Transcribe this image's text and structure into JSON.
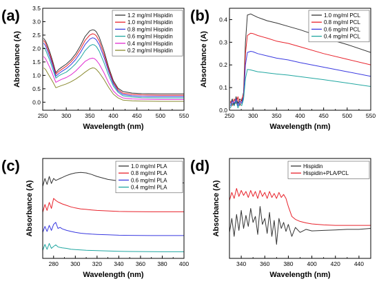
{
  "chart_data": [
    {
      "panel": "(a)",
      "type": "line",
      "xlabel": "Wavelength (nm)",
      "ylabel": "Absorbance (A)",
      "xlim": [
        250,
        550
      ],
      "ylim": [
        -0.3,
        3.5
      ],
      "xticks": [
        250,
        300,
        350,
        400,
        450,
        500,
        550
      ],
      "yticks": [
        0.0,
        0.5,
        1.0,
        1.5,
        2.0,
        2.5,
        3.0,
        3.5
      ],
      "ytick_decimals": 1,
      "grid": false,
      "legend_position": "top-right",
      "series": [
        {
          "name": "1.2 mg/ml Hispidin",
          "color": "#333333",
          "x": [
            252,
            256,
            260,
            266,
            272,
            278,
            284,
            290,
            300,
            310,
            320,
            330,
            340,
            350,
            356,
            360,
            364,
            370,
            380,
            390,
            400,
            410,
            420,
            440,
            460,
            500,
            550
          ],
          "y": [
            2.38,
            2.28,
            2.12,
            1.82,
            1.48,
            1.1,
            1.22,
            1.3,
            1.42,
            1.58,
            1.8,
            2.1,
            2.45,
            2.66,
            2.7,
            2.68,
            2.62,
            2.42,
            1.92,
            1.3,
            0.8,
            0.52,
            0.4,
            0.34,
            0.32,
            0.31,
            0.31
          ]
        },
        {
          "name": "1.0 mg/ml Hispidin",
          "color": "#e8212a",
          "x": [
            252,
            256,
            260,
            266,
            272,
            278,
            284,
            290,
            300,
            310,
            320,
            330,
            340,
            350,
            356,
            360,
            364,
            370,
            380,
            390,
            400,
            410,
            420,
            440,
            460,
            500,
            550
          ],
          "y": [
            2.3,
            2.2,
            2.02,
            1.74,
            1.4,
            1.04,
            1.14,
            1.22,
            1.34,
            1.5,
            1.7,
            1.98,
            2.3,
            2.5,
            2.55,
            2.53,
            2.47,
            2.28,
            1.8,
            1.22,
            0.74,
            0.47,
            0.34,
            0.29,
            0.27,
            0.26,
            0.26
          ]
        },
        {
          "name": "0.8 mg/ml Hispidin",
          "color": "#3838e0",
          "x": [
            252,
            256,
            260,
            266,
            272,
            278,
            284,
            290,
            300,
            310,
            320,
            330,
            340,
            350,
            356,
            360,
            364,
            370,
            380,
            390,
            400,
            410,
            420,
            440,
            460,
            500,
            550
          ],
          "y": [
            2.2,
            2.1,
            1.92,
            1.65,
            1.32,
            0.97,
            1.06,
            1.14,
            1.25,
            1.4,
            1.59,
            1.85,
            2.15,
            2.35,
            2.4,
            2.38,
            2.32,
            2.14,
            1.68,
            1.14,
            0.68,
            0.42,
            0.29,
            0.24,
            0.22,
            0.21,
            0.21
          ]
        },
        {
          "name": "0.6 mg/ml Hispidin",
          "color": "#1fa6a0",
          "x": [
            252,
            256,
            260,
            266,
            272,
            278,
            284,
            290,
            300,
            310,
            320,
            330,
            340,
            350,
            356,
            360,
            364,
            370,
            380,
            390,
            400,
            410,
            420,
            440,
            460,
            500,
            550
          ],
          "y": [
            2.05,
            1.95,
            1.78,
            1.52,
            1.2,
            0.9,
            0.98,
            1.04,
            1.12,
            1.26,
            1.43,
            1.65,
            1.92,
            2.1,
            2.15,
            2.13,
            2.07,
            1.9,
            1.48,
            1.0,
            0.6,
            0.37,
            0.24,
            0.19,
            0.17,
            0.16,
            0.16
          ]
        },
        {
          "name": "0.4 mg/ml Hispidin",
          "color": "#e02ad0",
          "x": [
            252,
            256,
            260,
            266,
            272,
            278,
            284,
            290,
            300,
            310,
            320,
            330,
            340,
            350,
            356,
            360,
            364,
            370,
            380,
            390,
            400,
            410,
            420,
            440,
            460,
            500,
            550
          ],
          "y": [
            1.7,
            1.62,
            1.48,
            1.26,
            1.0,
            0.74,
            0.8,
            0.85,
            0.92,
            1.02,
            1.16,
            1.34,
            1.52,
            1.62,
            1.64,
            1.62,
            1.56,
            1.42,
            1.1,
            0.72,
            0.42,
            0.25,
            0.16,
            0.12,
            0.11,
            0.1,
            0.1
          ]
        },
        {
          "name": "0.2 mg/ml Hispidin",
          "color": "#8a8a30",
          "x": [
            252,
            256,
            260,
            266,
            272,
            278,
            284,
            290,
            300,
            310,
            320,
            330,
            340,
            350,
            356,
            360,
            364,
            370,
            380,
            390,
            400,
            410,
            420,
            440,
            460,
            500,
            550
          ],
          "y": [
            1.28,
            1.22,
            1.1,
            0.92,
            0.74,
            0.54,
            0.58,
            0.62,
            0.68,
            0.76,
            0.86,
            0.98,
            1.12,
            1.24,
            1.28,
            1.27,
            1.22,
            1.1,
            0.85,
            0.55,
            0.3,
            0.16,
            0.08,
            0.05,
            0.04,
            0.03,
            0.03
          ]
        }
      ]
    },
    {
      "panel": "(b)",
      "type": "line",
      "xlabel": "Wavelength (nm)",
      "ylabel": "Absorbance (A)",
      "xlim": [
        250,
        550
      ],
      "ylim": [
        0.0,
        0.45
      ],
      "xticks": [
        250,
        300,
        350,
        400,
        450,
        500,
        550
      ],
      "yticks": [
        0.0,
        0.1,
        0.2,
        0.3,
        0.4
      ],
      "ytick_decimals": 1,
      "grid": false,
      "legend_position": "top-right",
      "series": [
        {
          "name": "1.0 mg/ml PCL",
          "color": "#333333",
          "x": [
            252,
            256,
            260,
            264,
            268,
            272,
            276,
            280,
            284,
            288,
            295,
            300,
            310,
            330,
            350,
            375,
            400,
            450,
            500,
            550
          ],
          "y": [
            0.03,
            0.05,
            0.02,
            0.06,
            0.03,
            0.05,
            0.04,
            0.08,
            0.3,
            0.42,
            0.425,
            0.42,
            0.41,
            0.395,
            0.385,
            0.37,
            0.355,
            0.32,
            0.29,
            0.255
          ]
        },
        {
          "name": "0.8 mg/ml PCL",
          "color": "#e8212a",
          "x": [
            252,
            256,
            260,
            264,
            268,
            272,
            276,
            280,
            284,
            288,
            295,
            300,
            310,
            330,
            350,
            375,
            400,
            450,
            500,
            550
          ],
          "y": [
            0.04,
            0.02,
            0.05,
            0.03,
            0.06,
            0.02,
            0.05,
            0.07,
            0.25,
            0.33,
            0.34,
            0.338,
            0.33,
            0.318,
            0.305,
            0.295,
            0.28,
            0.25,
            0.225,
            0.2
          ]
        },
        {
          "name": "0.6 mg/ml PCL",
          "color": "#3838e0",
          "x": [
            252,
            256,
            260,
            264,
            268,
            272,
            276,
            280,
            284,
            288,
            295,
            300,
            310,
            330,
            350,
            375,
            400,
            450,
            500,
            550
          ],
          "y": [
            0.02,
            0.04,
            0.03,
            0.05,
            0.02,
            0.04,
            0.03,
            0.06,
            0.2,
            0.255,
            0.26,
            0.258,
            0.25,
            0.24,
            0.23,
            0.222,
            0.21,
            0.19,
            0.17,
            0.15
          ]
        },
        {
          "name": "0.4 mg/ml PCL",
          "color": "#1fa6a0",
          "x": [
            252,
            256,
            260,
            264,
            268,
            272,
            276,
            280,
            284,
            288,
            295,
            300,
            310,
            330,
            350,
            375,
            400,
            450,
            500,
            550
          ],
          "y": [
            0.01,
            0.03,
            0.02,
            0.04,
            0.01,
            0.03,
            0.02,
            0.05,
            0.14,
            0.18,
            0.178,
            0.175,
            0.17,
            0.165,
            0.16,
            0.155,
            0.148,
            0.135,
            0.12,
            0.105
          ]
        }
      ]
    },
    {
      "panel": "(c)",
      "type": "line",
      "xlabel": "Wavelength (nm)",
      "ylabel": "Absorbance (A)",
      "xlim": [
        270,
        400
      ],
      "ylim": [
        0,
        1
      ],
      "xticks": [
        280,
        300,
        320,
        340,
        360,
        380,
        400
      ],
      "yticks": [],
      "grid": false,
      "legend_position": "top-right",
      "series": [
        {
          "name": "1.0 mg/ml PLA",
          "color": "#333333",
          "x": [
            270,
            272,
            274,
            276,
            278,
            280,
            282,
            284,
            286,
            288,
            292,
            296,
            300,
            305,
            310,
            315,
            320,
            330,
            340,
            350,
            360,
            370,
            380,
            390,
            400
          ],
          "y": [
            0.72,
            0.8,
            0.74,
            0.82,
            0.75,
            0.8,
            0.78,
            0.79,
            0.8,
            0.81,
            0.83,
            0.845,
            0.855,
            0.86,
            0.855,
            0.84,
            0.82,
            0.79,
            0.775,
            0.765,
            0.76,
            0.76,
            0.758,
            0.756,
            0.755
          ]
        },
        {
          "name": "0.8 mg/ml PLA",
          "color": "#e8212a",
          "x": [
            270,
            272,
            274,
            276,
            278,
            280,
            282,
            284,
            286,
            288,
            292,
            296,
            300,
            305,
            310,
            315,
            320,
            330,
            340,
            350,
            360,
            370,
            380,
            390,
            400
          ],
          "y": [
            0.46,
            0.54,
            0.48,
            0.56,
            0.5,
            0.6,
            0.58,
            0.565,
            0.555,
            0.545,
            0.53,
            0.515,
            0.505,
            0.495,
            0.49,
            0.485,
            0.48,
            0.475,
            0.47,
            0.468,
            0.467,
            0.466,
            0.466,
            0.466,
            0.466
          ]
        },
        {
          "name": "0.6 mg/ml PLA",
          "color": "#3838e0",
          "x": [
            270,
            272,
            274,
            276,
            278,
            280,
            282,
            284,
            286,
            288,
            292,
            296,
            300,
            305,
            310,
            315,
            320,
            330,
            340,
            350,
            360,
            370,
            380,
            390,
            400
          ],
          "y": [
            0.26,
            0.32,
            0.27,
            0.33,
            0.28,
            0.34,
            0.36,
            0.3,
            0.31,
            0.295,
            0.28,
            0.27,
            0.26,
            0.252,
            0.247,
            0.243,
            0.24,
            0.236,
            0.232,
            0.23,
            0.229,
            0.228,
            0.228,
            0.228,
            0.228
          ]
        },
        {
          "name": "0.4 mg/ml PLA",
          "color": "#1fa6a0",
          "x": [
            270,
            272,
            274,
            276,
            278,
            280,
            282,
            284,
            286,
            288,
            292,
            296,
            300,
            305,
            310,
            315,
            320,
            330,
            340,
            350,
            360,
            370,
            380,
            390,
            400
          ],
          "y": [
            0.08,
            0.14,
            0.09,
            0.15,
            0.1,
            0.12,
            0.135,
            0.115,
            0.11,
            0.105,
            0.1,
            0.092,
            0.088,
            0.084,
            0.081,
            0.079,
            0.077,
            0.074,
            0.071,
            0.069,
            0.068,
            0.067,
            0.066,
            0.066,
            0.066
          ]
        }
      ]
    },
    {
      "panel": "(d)",
      "type": "line",
      "xlabel": "Wavelength (nm)",
      "ylabel": "Absorbance (A)",
      "xlim": [
        330,
        450
      ],
      "ylim": [
        0,
        1
      ],
      "xticks": [
        340,
        360,
        380,
        400,
        420,
        440
      ],
      "yticks": [],
      "grid": false,
      "legend_position": "top-right",
      "series": [
        {
          "name": "Hispidin",
          "color": "#333333",
          "x": [
            330,
            332,
            334,
            336,
            338,
            340,
            342,
            344,
            346,
            348,
            350,
            352,
            354,
            356,
            358,
            360,
            362,
            364,
            366,
            368,
            370,
            372,
            374,
            376,
            378,
            380,
            383,
            386,
            390,
            395,
            400,
            410,
            420,
            430,
            440,
            450
          ],
          "y": [
            0.26,
            0.4,
            0.22,
            0.44,
            0.28,
            0.48,
            0.3,
            0.43,
            0.32,
            0.5,
            0.36,
            0.42,
            0.24,
            0.52,
            0.34,
            0.4,
            0.25,
            0.46,
            0.22,
            0.38,
            0.14,
            0.4,
            0.3,
            0.36,
            0.27,
            0.34,
            0.22,
            0.31,
            0.26,
            0.29,
            0.275,
            0.28,
            0.285,
            0.29,
            0.29,
            0.3
          ]
        },
        {
          "name": "Hispidin+PLA/PCL",
          "color": "#e8212a",
          "x": [
            330,
            332,
            334,
            336,
            338,
            340,
            342,
            344,
            346,
            348,
            350,
            352,
            354,
            356,
            358,
            360,
            362,
            364,
            366,
            368,
            370,
            372,
            374,
            376,
            378,
            380,
            383,
            386,
            390,
            395,
            400,
            410,
            420,
            430,
            440,
            450
          ],
          "y": [
            0.58,
            0.66,
            0.6,
            0.7,
            0.62,
            0.68,
            0.63,
            0.67,
            0.61,
            0.68,
            0.62,
            0.67,
            0.6,
            0.68,
            0.62,
            0.66,
            0.6,
            0.67,
            0.61,
            0.65,
            0.6,
            0.66,
            0.61,
            0.64,
            0.6,
            0.52,
            0.42,
            0.39,
            0.37,
            0.355,
            0.345,
            0.335,
            0.33,
            0.33,
            0.33,
            0.33
          ]
        }
      ]
    }
  ]
}
